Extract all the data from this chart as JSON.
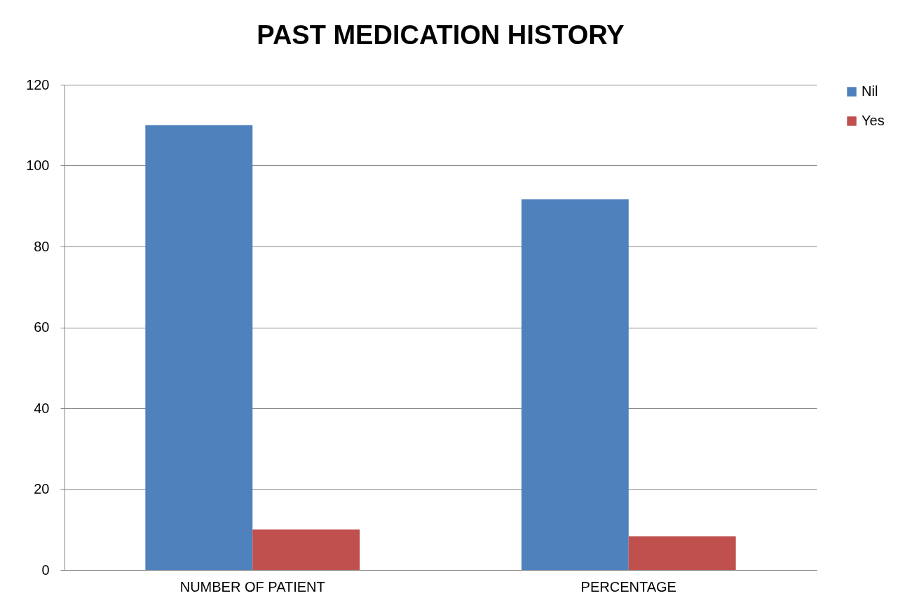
{
  "chart_data": {
    "type": "bar",
    "title": "PAST MEDICATION HISTORY",
    "categories": [
      "NUMBER OF PATIENT",
      "PERCENTAGE"
    ],
    "series": [
      {
        "name": "Nil",
        "color": "#4f81bd",
        "values": [
          110,
          91.7
        ]
      },
      {
        "name": "Yes",
        "color": "#c0504d",
        "values": [
          10,
          8.3
        ]
      }
    ],
    "ylim": [
      0,
      120
    ],
    "yticks": [
      0,
      20,
      40,
      60,
      80,
      100,
      120
    ],
    "grid": "y",
    "legend": "right"
  }
}
